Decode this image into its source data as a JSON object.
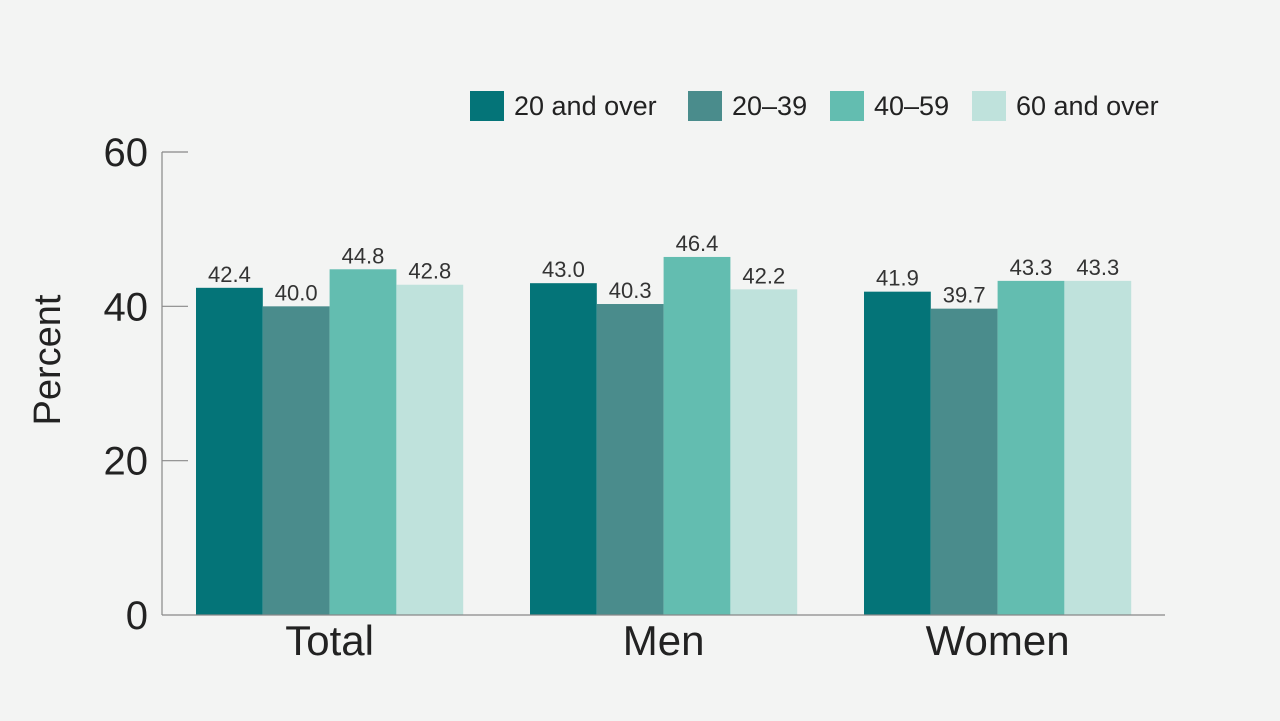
{
  "chart_data": {
    "type": "bar",
    "categories": [
      "Total",
      "Men",
      "Women"
    ],
    "series": [
      {
        "name": "20 and over",
        "color": "#047478",
        "values": [
          42.4,
          43.0,
          41.9
        ]
      },
      {
        "name": "20–39",
        "color": "#4a8c8c",
        "values": [
          40.0,
          40.3,
          39.7
        ]
      },
      {
        "name": "40–59",
        "color": "#63bdb0",
        "values": [
          44.8,
          46.4,
          43.3
        ]
      },
      {
        "name": "60 and over",
        "color": "#bfe2dc",
        "values": [
          42.8,
          42.2,
          43.3
        ]
      }
    ],
    "data_labels": [
      [
        "42.4",
        "43.0",
        "41.9"
      ],
      [
        "40.0",
        "40.3",
        "39.7"
      ],
      [
        "44.8",
        "46.4",
        "43.3"
      ],
      [
        "42.8",
        "42.2",
        "43.3"
      ]
    ],
    "title": "",
    "xlabel": "",
    "ylabel": "Percent",
    "ylim": [
      0,
      60
    ],
    "yticks": [
      0,
      20,
      40,
      60
    ],
    "ytick_labels": [
      "0",
      "20",
      "40",
      "60"
    ],
    "grid": false,
    "legend_position": "top-right"
  }
}
